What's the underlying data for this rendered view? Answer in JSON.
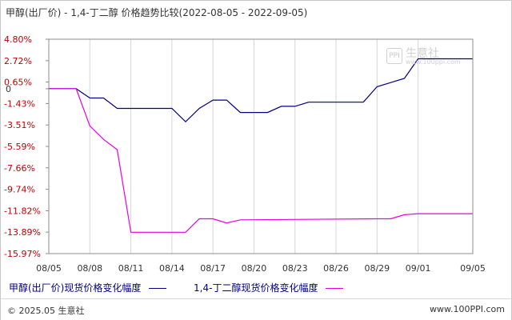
{
  "chart_data": {
    "type": "line",
    "title": "甲醇(出厂价) - 1,4-丁二醇 价格趋势比较(2022-08-05 - 2022-09-05)",
    "x_tick_labels": [
      "08/05",
      "08/08",
      "08/11",
      "08/14",
      "08/17",
      "08/20",
      "08/23",
      "08/26",
      "08/29",
      "09/01",
      "09/05"
    ],
    "y_tick_labels": [
      "4.80%",
      "2.72%",
      "0.65%",
      "0",
      "-1.43%",
      "-3.51%",
      "-5.59%",
      "-7.66%",
      "-9.74%",
      "-11.82%",
      "-13.89%",
      "-15.97%"
    ],
    "y_tick_values": [
      4.8,
      2.72,
      0.65,
      0,
      -1.43,
      -3.51,
      -5.59,
      -7.66,
      -9.74,
      -11.82,
      -13.89,
      -15.97
    ],
    "x_range": [
      "2022-08-05",
      "2022-09-05"
    ],
    "ylim": [
      -15.97,
      4.8
    ],
    "grid": "vertical",
    "legend": "bottom",
    "series": [
      {
        "name": "甲醇(出厂价)现货价格变化幅度",
        "color": "#000080",
        "points": [
          [
            "2022-08-05",
            0
          ],
          [
            "2022-08-07",
            0
          ],
          [
            "2022-08-08",
            -0.9
          ],
          [
            "2022-08-09",
            -0.9
          ],
          [
            "2022-08-10",
            -1.9
          ],
          [
            "2022-08-14",
            -1.9
          ],
          [
            "2022-08-15",
            -3.2
          ],
          [
            "2022-08-16",
            -1.9
          ],
          [
            "2022-08-17",
            -1.1
          ],
          [
            "2022-08-18",
            -1.1
          ],
          [
            "2022-08-19",
            -2.3
          ],
          [
            "2022-08-21",
            -2.3
          ],
          [
            "2022-08-22",
            -1.7
          ],
          [
            "2022-08-23",
            -1.7
          ],
          [
            "2022-08-24",
            -1.3
          ],
          [
            "2022-08-28",
            -1.3
          ],
          [
            "2022-08-29",
            0.2
          ],
          [
            "2022-08-30",
            0.6
          ],
          [
            "2022-08-31",
            1.0
          ],
          [
            "2022-09-01",
            2.9
          ],
          [
            "2022-09-05",
            2.9
          ]
        ]
      },
      {
        "name": "1,4-丁二醇现货价格变化幅度",
        "color": "#e600e6",
        "points": [
          [
            "2022-08-05",
            0
          ],
          [
            "2022-08-07",
            0
          ],
          [
            "2022-08-08",
            -3.6
          ],
          [
            "2022-08-09",
            -4.9
          ],
          [
            "2022-08-10",
            -5.9
          ],
          [
            "2022-08-11",
            -13.9
          ],
          [
            "2022-08-15",
            -13.9
          ],
          [
            "2022-08-16",
            -12.6
          ],
          [
            "2022-08-17",
            -12.6
          ],
          [
            "2022-08-18",
            -13.0
          ],
          [
            "2022-08-19",
            -12.7
          ],
          [
            "2022-08-29",
            -12.6
          ],
          [
            "2022-08-30",
            -12.6
          ],
          [
            "2022-08-31",
            -12.2
          ],
          [
            "2022-09-01",
            -12.1
          ],
          [
            "2022-09-05",
            -12.1
          ]
        ]
      }
    ]
  },
  "watermark": {
    "brand_cn": "生意社",
    "brand_en": "www.100ppi.com",
    "mark": "PPI"
  },
  "footer": {
    "copyright": "© 2025.05 生意社",
    "site": "www.100PPI.com"
  }
}
